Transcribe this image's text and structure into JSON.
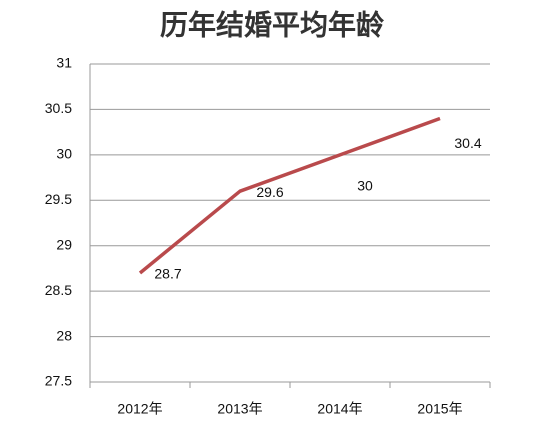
{
  "chart_data": {
    "type": "line",
    "title": "历年结婚平均年龄",
    "categories": [
      "2012年",
      "2013年",
      "2014年",
      "2015年"
    ],
    "values": [
      28.7,
      29.6,
      30,
      30.4
    ],
    "color": "#b94a4c",
    "ylim": [
      27.5,
      31
    ],
    "yticks": [
      27.5,
      28,
      28.5,
      29,
      29.5,
      30,
      30.5,
      31
    ],
    "grid": true
  }
}
